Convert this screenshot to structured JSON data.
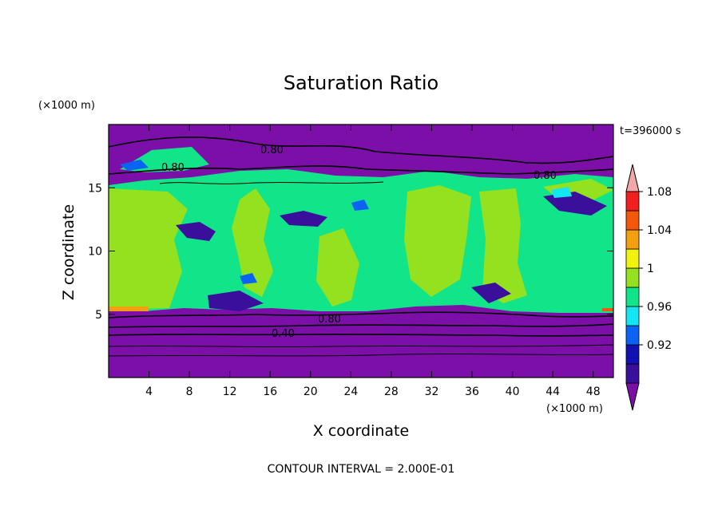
{
  "chart_data": {
    "type": "heatmap",
    "title": "Saturation Ratio",
    "xlabel": "X coordinate",
    "ylabel": "Z coordinate",
    "x_unit": "(×1000 m)",
    "y_unit": "(×1000 m)",
    "time_label": "t=396000 s",
    "footer": "CONTOUR INTERVAL = 2.000E-01",
    "xlim": [
      0,
      50
    ],
    "ylim": [
      0,
      20
    ],
    "x_ticks": [
      "4",
      "8",
      "12",
      "16",
      "20",
      "24",
      "28",
      "32",
      "36",
      "40",
      "44",
      "48"
    ],
    "y_ticks": [
      "5",
      "10",
      "15"
    ],
    "colorbar": {
      "labels": [
        "0.92",
        "0.96",
        "1",
        "1.04",
        "1.08"
      ],
      "colors": [
        "#7b0fa8",
        "#3a0f9c",
        "#1212b4",
        "#0a63f2",
        "#12e6f2",
        "#12e48a",
        "#93e11f",
        "#f2f20f",
        "#f2a00f",
        "#f2570a",
        "#f21f1f",
        "#f2a8a8"
      ]
    },
    "contour_labels": [
      "0.80",
      "0.80",
      "0.80",
      "0.80",
      "0.40"
    ]
  }
}
